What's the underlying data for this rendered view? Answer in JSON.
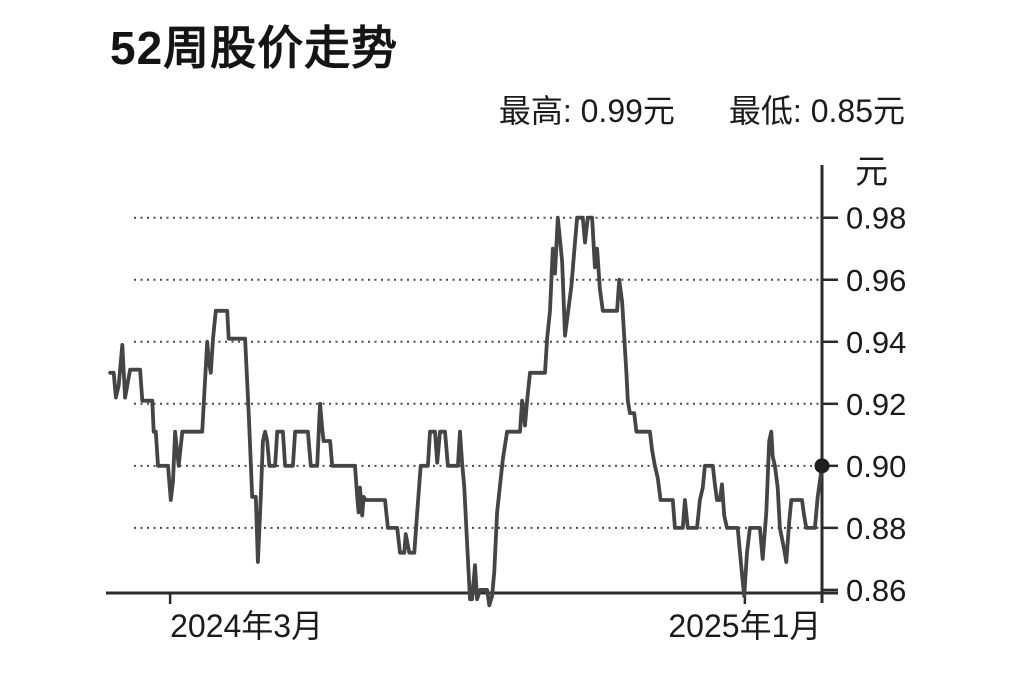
{
  "title": "52周股价走势",
  "stats": {
    "high_label": "最高: 0.99元",
    "low_label": "最低: 0.85元",
    "high_value": 0.99,
    "low_value": 0.85
  },
  "chart_data": {
    "type": "line",
    "title": "52周股价走势",
    "y_axis_unit": "元",
    "ylim": [
      0.859,
      0.997
    ],
    "grid": "horizontal-dotted",
    "legend": "none",
    "last_price": 0.9,
    "y_ticks": [
      {
        "label": "0.98",
        "value": 0.98,
        "grid": true
      },
      {
        "label": "0.96",
        "value": 0.96,
        "grid": true
      },
      {
        "label": "0.94",
        "value": 0.94,
        "grid": true
      },
      {
        "label": "0.92",
        "value": 0.92,
        "grid": true
      },
      {
        "label": "0.90",
        "value": 0.9,
        "grid": true
      },
      {
        "label": "0.88",
        "value": 0.88,
        "grid": true
      },
      {
        "label": "0.86",
        "value": 0.86,
        "grid": false
      }
    ],
    "x_ticks": [
      {
        "label": "2024年3月",
        "frac": 0.087,
        "align": "start"
      },
      {
        "label": "2025年1月",
        "frac": 0.892,
        "align": "middle"
      }
    ],
    "series": [
      {
        "points": [
          [
            0.003,
            0.93
          ],
          [
            0.008,
            0.93
          ],
          [
            0.011,
            0.922
          ],
          [
            0.015,
            0.926
          ],
          [
            0.02,
            0.939
          ],
          [
            0.024,
            0.922
          ],
          [
            0.027,
            0.926
          ],
          [
            0.031,
            0.931
          ],
          [
            0.045,
            0.931
          ],
          [
            0.048,
            0.921
          ],
          [
            0.062,
            0.921
          ],
          [
            0.064,
            0.911
          ],
          [
            0.067,
            0.911
          ],
          [
            0.07,
            0.9
          ],
          [
            0.084,
            0.9
          ],
          [
            0.088,
            0.889
          ],
          [
            0.091,
            0.895
          ],
          [
            0.094,
            0.911
          ],
          [
            0.097,
            0.904
          ],
          [
            0.099,
            0.9
          ],
          [
            0.104,
            0.911
          ],
          [
            0.132,
            0.911
          ],
          [
            0.139,
            0.94
          ],
          [
            0.141,
            0.934
          ],
          [
            0.144,
            0.93
          ],
          [
            0.147,
            0.941
          ],
          [
            0.151,
            0.95
          ],
          [
            0.167,
            0.95
          ],
          [
            0.169,
            0.941
          ],
          [
            0.192,
            0.941
          ],
          [
            0.197,
            0.917
          ],
          [
            0.202,
            0.89
          ],
          [
            0.207,
            0.89
          ],
          [
            0.21,
            0.869
          ],
          [
            0.214,
            0.89
          ],
          [
            0.217,
            0.908
          ],
          [
            0.22,
            0.911
          ],
          [
            0.223,
            0.908
          ],
          [
            0.226,
            0.9
          ],
          [
            0.234,
            0.9
          ],
          [
            0.237,
            0.911
          ],
          [
            0.245,
            0.911
          ],
          [
            0.248,
            0.9
          ],
          [
            0.259,
            0.9
          ],
          [
            0.262,
            0.911
          ],
          [
            0.28,
            0.911
          ],
          [
            0.284,
            0.9
          ],
          [
            0.293,
            0.9
          ],
          [
            0.296,
            0.915
          ],
          [
            0.297,
            0.92
          ],
          [
            0.3,
            0.912
          ],
          [
            0.302,
            0.908
          ],
          [
            0.311,
            0.908
          ],
          [
            0.314,
            0.9
          ],
          [
            0.346,
            0.9
          ],
          [
            0.349,
            0.89
          ],
          [
            0.351,
            0.885
          ],
          [
            0.353,
            0.893
          ],
          [
            0.356,
            0.884
          ],
          [
            0.358,
            0.89
          ],
          [
            0.361,
            0.889
          ],
          [
            0.388,
            0.889
          ],
          [
            0.392,
            0.88
          ],
          [
            0.405,
            0.88
          ],
          [
            0.409,
            0.872
          ],
          [
            0.415,
            0.872
          ],
          [
            0.417,
            0.878
          ],
          [
            0.422,
            0.872
          ],
          [
            0.429,
            0.872
          ],
          [
            0.433,
            0.885
          ],
          [
            0.438,
            0.9
          ],
          [
            0.448,
            0.9
          ],
          [
            0.451,
            0.911
          ],
          [
            0.458,
            0.911
          ],
          [
            0.461,
            0.901
          ],
          [
            0.465,
            0.911
          ],
          [
            0.472,
            0.911
          ],
          [
            0.476,
            0.9
          ],
          [
            0.49,
            0.9
          ],
          [
            0.493,
            0.911
          ],
          [
            0.496,
            0.901
          ],
          [
            0.499,
            0.893
          ],
          [
            0.503,
            0.875
          ],
          [
            0.507,
            0.857
          ],
          [
            0.51,
            0.857
          ],
          [
            0.514,
            0.868
          ],
          [
            0.517,
            0.857
          ],
          [
            0.521,
            0.86
          ],
          [
            0.531,
            0.86
          ],
          [
            0.534,
            0.855
          ],
          [
            0.538,
            0.858
          ],
          [
            0.541,
            0.866
          ],
          [
            0.545,
            0.885
          ],
          [
            0.553,
            0.902
          ],
          [
            0.559,
            0.911
          ],
          [
            0.577,
            0.911
          ],
          [
            0.58,
            0.921
          ],
          [
            0.584,
            0.913
          ],
          [
            0.587,
            0.921
          ],
          [
            0.591,
            0.93
          ],
          [
            0.612,
            0.93
          ],
          [
            0.615,
            0.941
          ],
          [
            0.619,
            0.95
          ],
          [
            0.623,
            0.97
          ],
          [
            0.626,
            0.962
          ],
          [
            0.63,
            0.98
          ],
          [
            0.636,
            0.966
          ],
          [
            0.64,
            0.942
          ],
          [
            0.644,
            0.949
          ],
          [
            0.649,
            0.958
          ],
          [
            0.653,
            0.969
          ],
          [
            0.657,
            0.98
          ],
          [
            0.665,
            0.98
          ],
          [
            0.668,
            0.972
          ],
          [
            0.672,
            0.98
          ],
          [
            0.678,
            0.98
          ],
          [
            0.682,
            0.964
          ],
          [
            0.685,
            0.97
          ],
          [
            0.689,
            0.957
          ],
          [
            0.693,
            0.95
          ],
          [
            0.713,
            0.95
          ],
          [
            0.716,
            0.96
          ],
          [
            0.72,
            0.953
          ],
          [
            0.726,
            0.93
          ],
          [
            0.728,
            0.921
          ],
          [
            0.731,
            0.917
          ],
          [
            0.737,
            0.917
          ],
          [
            0.74,
            0.911
          ],
          [
            0.759,
            0.911
          ],
          [
            0.762,
            0.905
          ],
          [
            0.766,
            0.9
          ],
          [
            0.77,
            0.896
          ],
          [
            0.774,
            0.889
          ],
          [
            0.791,
            0.889
          ],
          [
            0.794,
            0.88
          ],
          [
            0.805,
            0.88
          ],
          [
            0.808,
            0.889
          ],
          [
            0.812,
            0.88
          ],
          [
            0.825,
            0.88
          ],
          [
            0.829,
            0.889
          ],
          [
            0.833,
            0.893
          ],
          [
            0.836,
            0.9
          ],
          [
            0.847,
            0.9
          ],
          [
            0.85,
            0.894
          ],
          [
            0.853,
            0.889
          ],
          [
            0.857,
            0.889
          ],
          [
            0.86,
            0.894
          ],
          [
            0.863,
            0.884
          ],
          [
            0.867,
            0.88
          ],
          [
            0.882,
            0.88
          ],
          [
            0.888,
            0.865
          ],
          [
            0.891,
            0.858
          ],
          [
            0.895,
            0.872
          ],
          [
            0.899,
            0.88
          ],
          [
            0.913,
            0.88
          ],
          [
            0.917,
            0.87
          ],
          [
            0.922,
            0.885
          ],
          [
            0.926,
            0.908
          ],
          [
            0.929,
            0.911
          ],
          [
            0.931,
            0.903
          ],
          [
            0.934,
            0.9
          ],
          [
            0.938,
            0.893
          ],
          [
            0.941,
            0.88
          ],
          [
            0.947,
            0.873
          ],
          [
            0.95,
            0.869
          ],
          [
            0.954,
            0.882
          ],
          [
            0.957,
            0.889
          ],
          [
            0.972,
            0.889
          ],
          [
            0.975,
            0.884
          ],
          [
            0.978,
            0.88
          ],
          [
            0.99,
            0.88
          ],
          [
            0.994,
            0.89
          ],
          [
            1.0,
            0.9
          ]
        ]
      }
    ]
  },
  "colors": {
    "background": "#ffffff",
    "line": "#454545",
    "axis": "#2b2b2b",
    "grid": "#4a4a4a",
    "text": "#1b1b1b",
    "dot": "#1f1f1f"
  }
}
